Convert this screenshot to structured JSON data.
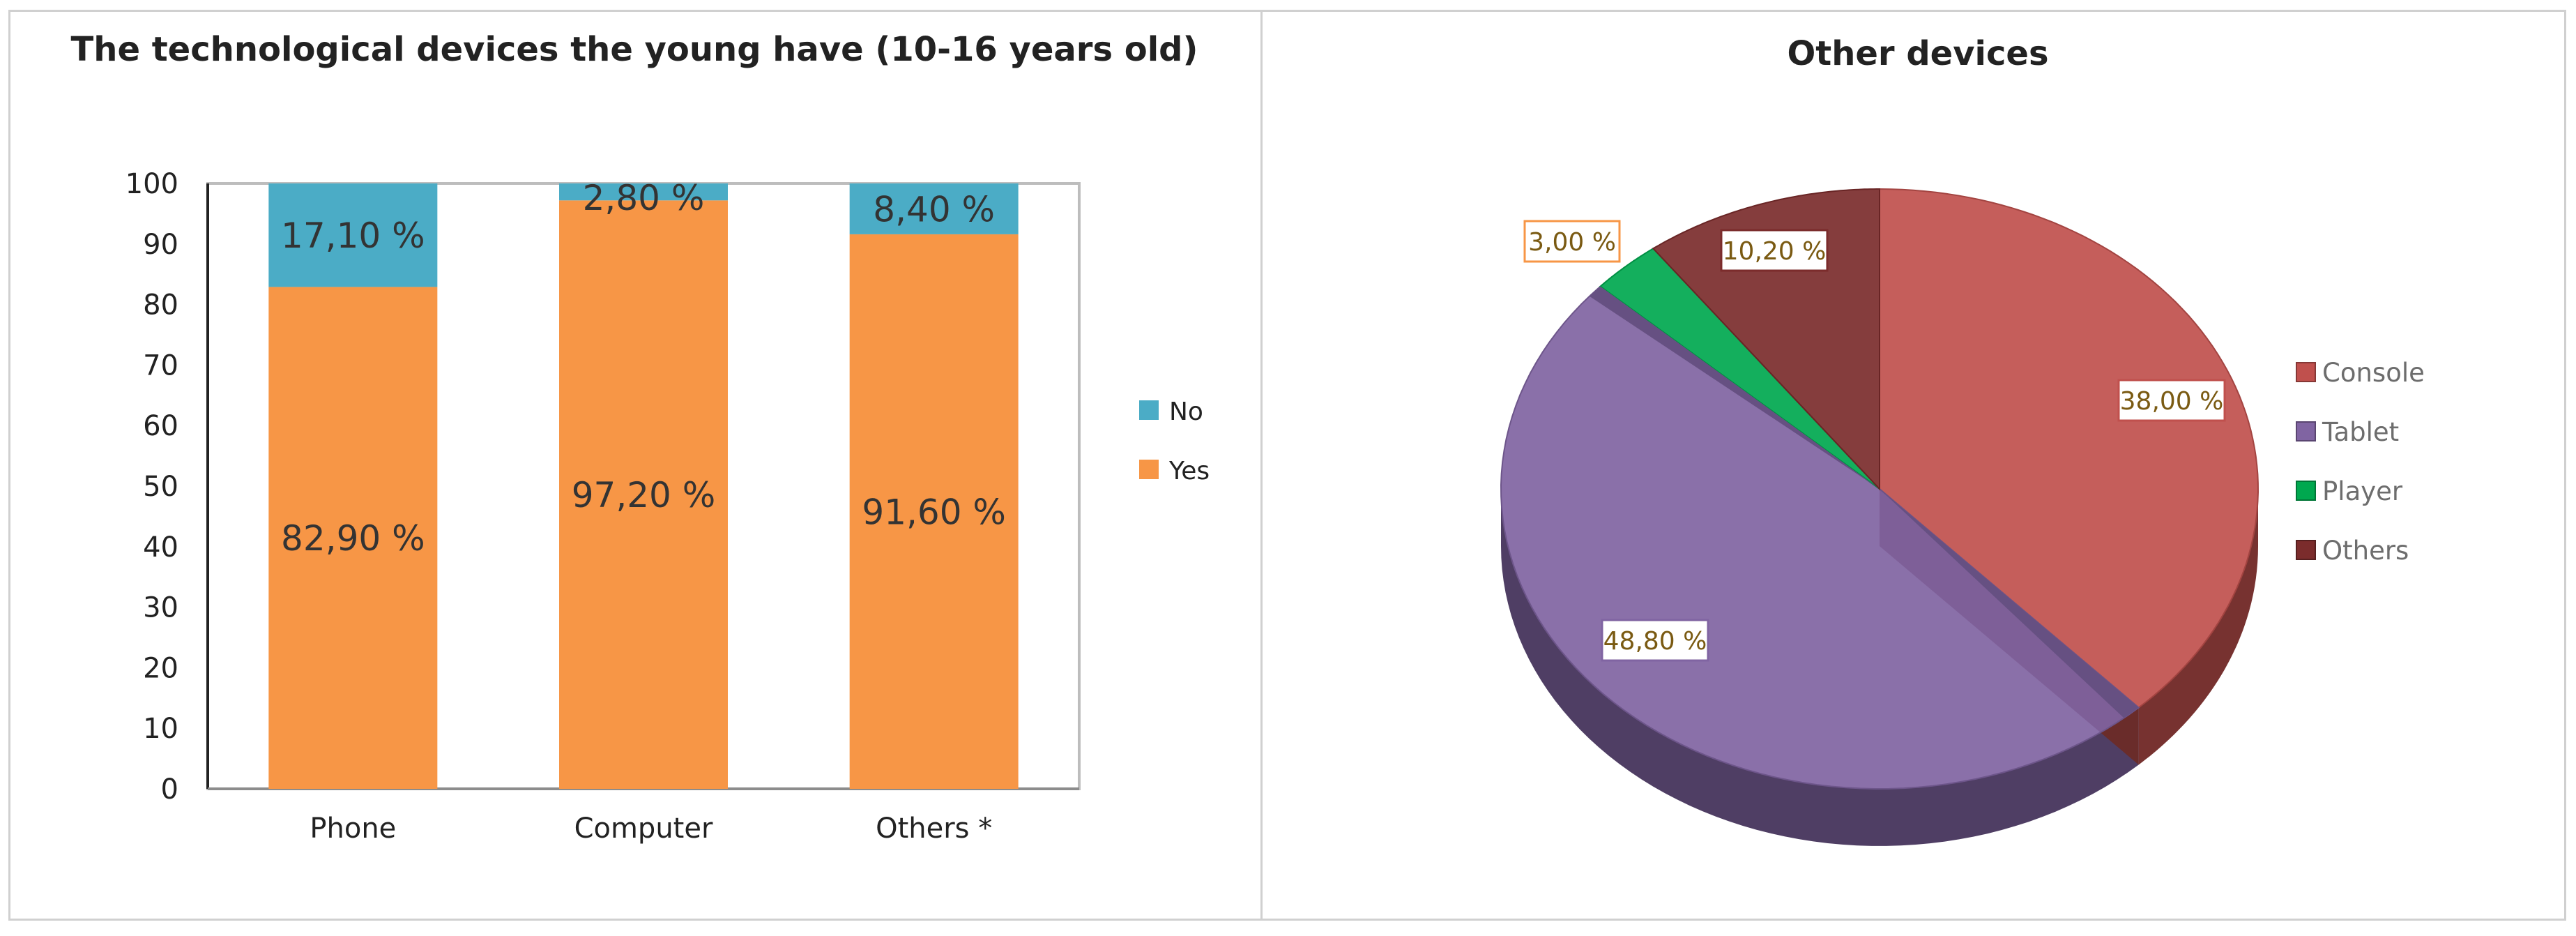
{
  "chart_data": [
    {
      "type": "bar",
      "stacked": true,
      "title": "The technological devices the young have (10-16 years old)",
      "categories": [
        "Phone",
        "Computer",
        "Others *"
      ],
      "series": [
        {
          "name": "Yes",
          "color": "#f79646",
          "values": [
            82.9,
            97.2,
            91.6
          ],
          "labels": [
            "82,90 %",
            "97,20 %",
            "91,60 %"
          ]
        },
        {
          "name": "No",
          "color": "#4bacc6",
          "values": [
            17.1,
            2.8,
            8.4
          ],
          "labels": [
            "17,10 %",
            "2,80 %",
            "8,40 %"
          ]
        }
      ],
      "ylim": [
        0,
        100
      ],
      "yticks": [
        "0",
        "10",
        "20",
        "30",
        "40",
        "50",
        "60",
        "70",
        "80",
        "90",
        "100"
      ],
      "legend": [
        {
          "name": "No",
          "color": "#4bacc6"
        },
        {
          "name": "Yes",
          "color": "#f79646"
        }
      ],
      "legend_position": "right"
    },
    {
      "type": "pie",
      "title": "Other devices",
      "slices": [
        {
          "name": "Console",
          "value": 38.0,
          "label": "38,00 %",
          "color": "#c0504d"
        },
        {
          "name": "Tablet",
          "value": 48.8,
          "label": "48,80 %",
          "color": "#8064a2"
        },
        {
          "name": "Player",
          "value": 3.0,
          "label": "3,00 %",
          "color": "#00a84f"
        },
        {
          "name": "Others",
          "value": 10.2,
          "label": "10,20 %",
          "color": "#7b2c2c"
        }
      ],
      "legend_position": "right"
    }
  ]
}
